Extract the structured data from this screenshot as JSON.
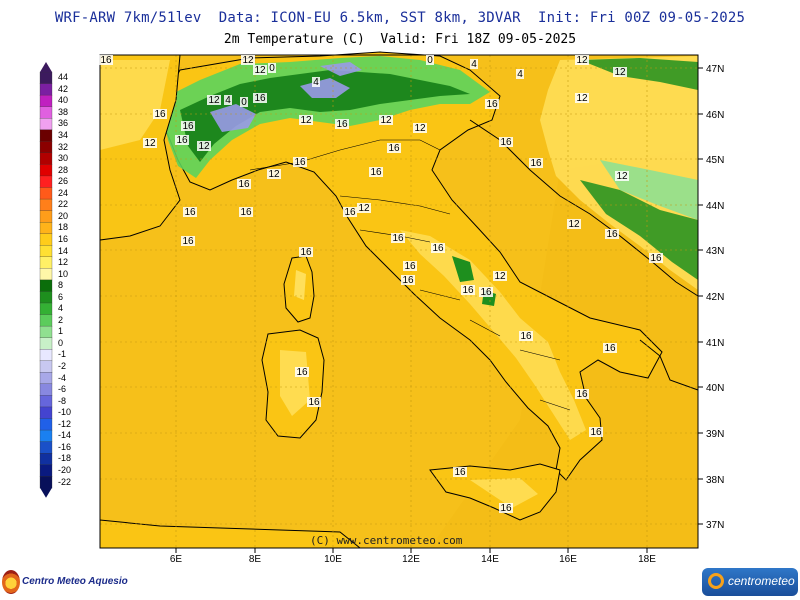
{
  "header": {
    "line1": "WRF-ARW 7km/51lev  Data: ICON-EU 6.5km, SST 8km, 3DVAR  Init: Fri 00Z 09-05-2025",
    "line2": "2m Temperature (C)  Valid: Fri 18Z 09-05-2025"
  },
  "legend": {
    "labels": [
      "44",
      "42",
      "40",
      "38",
      "36",
      "34",
      "32",
      "30",
      "28",
      "26",
      "24",
      "22",
      "20",
      "18",
      "16",
      "14",
      "12",
      "10",
      "8",
      "6",
      "4",
      "2",
      "1",
      "0",
      "-1",
      "-2",
      "-4",
      "-6",
      "-8",
      "-10",
      "-12",
      "-14",
      "-16",
      "-18",
      "-20",
      "-22"
    ],
    "colors": [
      "#3c1a5e",
      "#7b1fa2",
      "#c020c0",
      "#e060e0",
      "#f0a0f0",
      "#6b0000",
      "#8b0000",
      "#b00000",
      "#e00000",
      "#ff2020",
      "#ff5a1a",
      "#ff7f1a",
      "#ff9d1a",
      "#ffb31a",
      "#ffcc1a",
      "#ffe033",
      "#fff066",
      "#fff7a8",
      "#0b6e0b",
      "#1e8f1e",
      "#34b034",
      "#5ccc5c",
      "#90e090",
      "#c8f0c8",
      "#e8e8ff",
      "#c8c8f0",
      "#a8a8e8",
      "#8888e0",
      "#6666dc",
      "#4444d0",
      "#2060e8",
      "#1a80f0",
      "#1a50c8",
      "#1030a0",
      "#0a1a80",
      "#08105a"
    ]
  },
  "axes": {
    "lon_ticks": [
      "6E",
      "8E",
      "10E",
      "12E",
      "14E",
      "16E",
      "18E"
    ],
    "lat_ticks": [
      "47N",
      "46N",
      "45N",
      "44N",
      "43N",
      "42N",
      "41N",
      "40N",
      "39N",
      "38N",
      "37N"
    ]
  },
  "map": {
    "sea_color": "#f5c21b",
    "land_color": "#f9c515",
    "alps_green_dark": "#0f7a14",
    "alps_green_light": "#5cd35c",
    "alps_blue": "#9a9ae8",
    "warm_land": "#ffdf5a",
    "contour_labels": [
      "16",
      "12",
      "12",
      "0",
      "4",
      "0",
      "4",
      "4",
      "12",
      "12",
      "16",
      "16",
      "12",
      "4",
      "0",
      "16",
      "12",
      "16",
      "12",
      "12",
      "12",
      "12",
      "16",
      "16",
      "16",
      "16",
      "16",
      "12",
      "12",
      "16",
      "16",
      "16",
      "16",
      "16",
      "16",
      "12",
      "12",
      "16",
      "16",
      "16",
      "16",
      "16",
      "16",
      "12",
      "12",
      "16",
      "16",
      "16",
      "16",
      "16",
      "16",
      "16",
      "16",
      "16",
      "16",
      "16",
      "16"
    ]
  },
  "footer": {
    "copyright": "(C) www.centrometeo.com",
    "logo_left": "Centro Meteo Aquesio",
    "logo_right": "centrometeo"
  }
}
